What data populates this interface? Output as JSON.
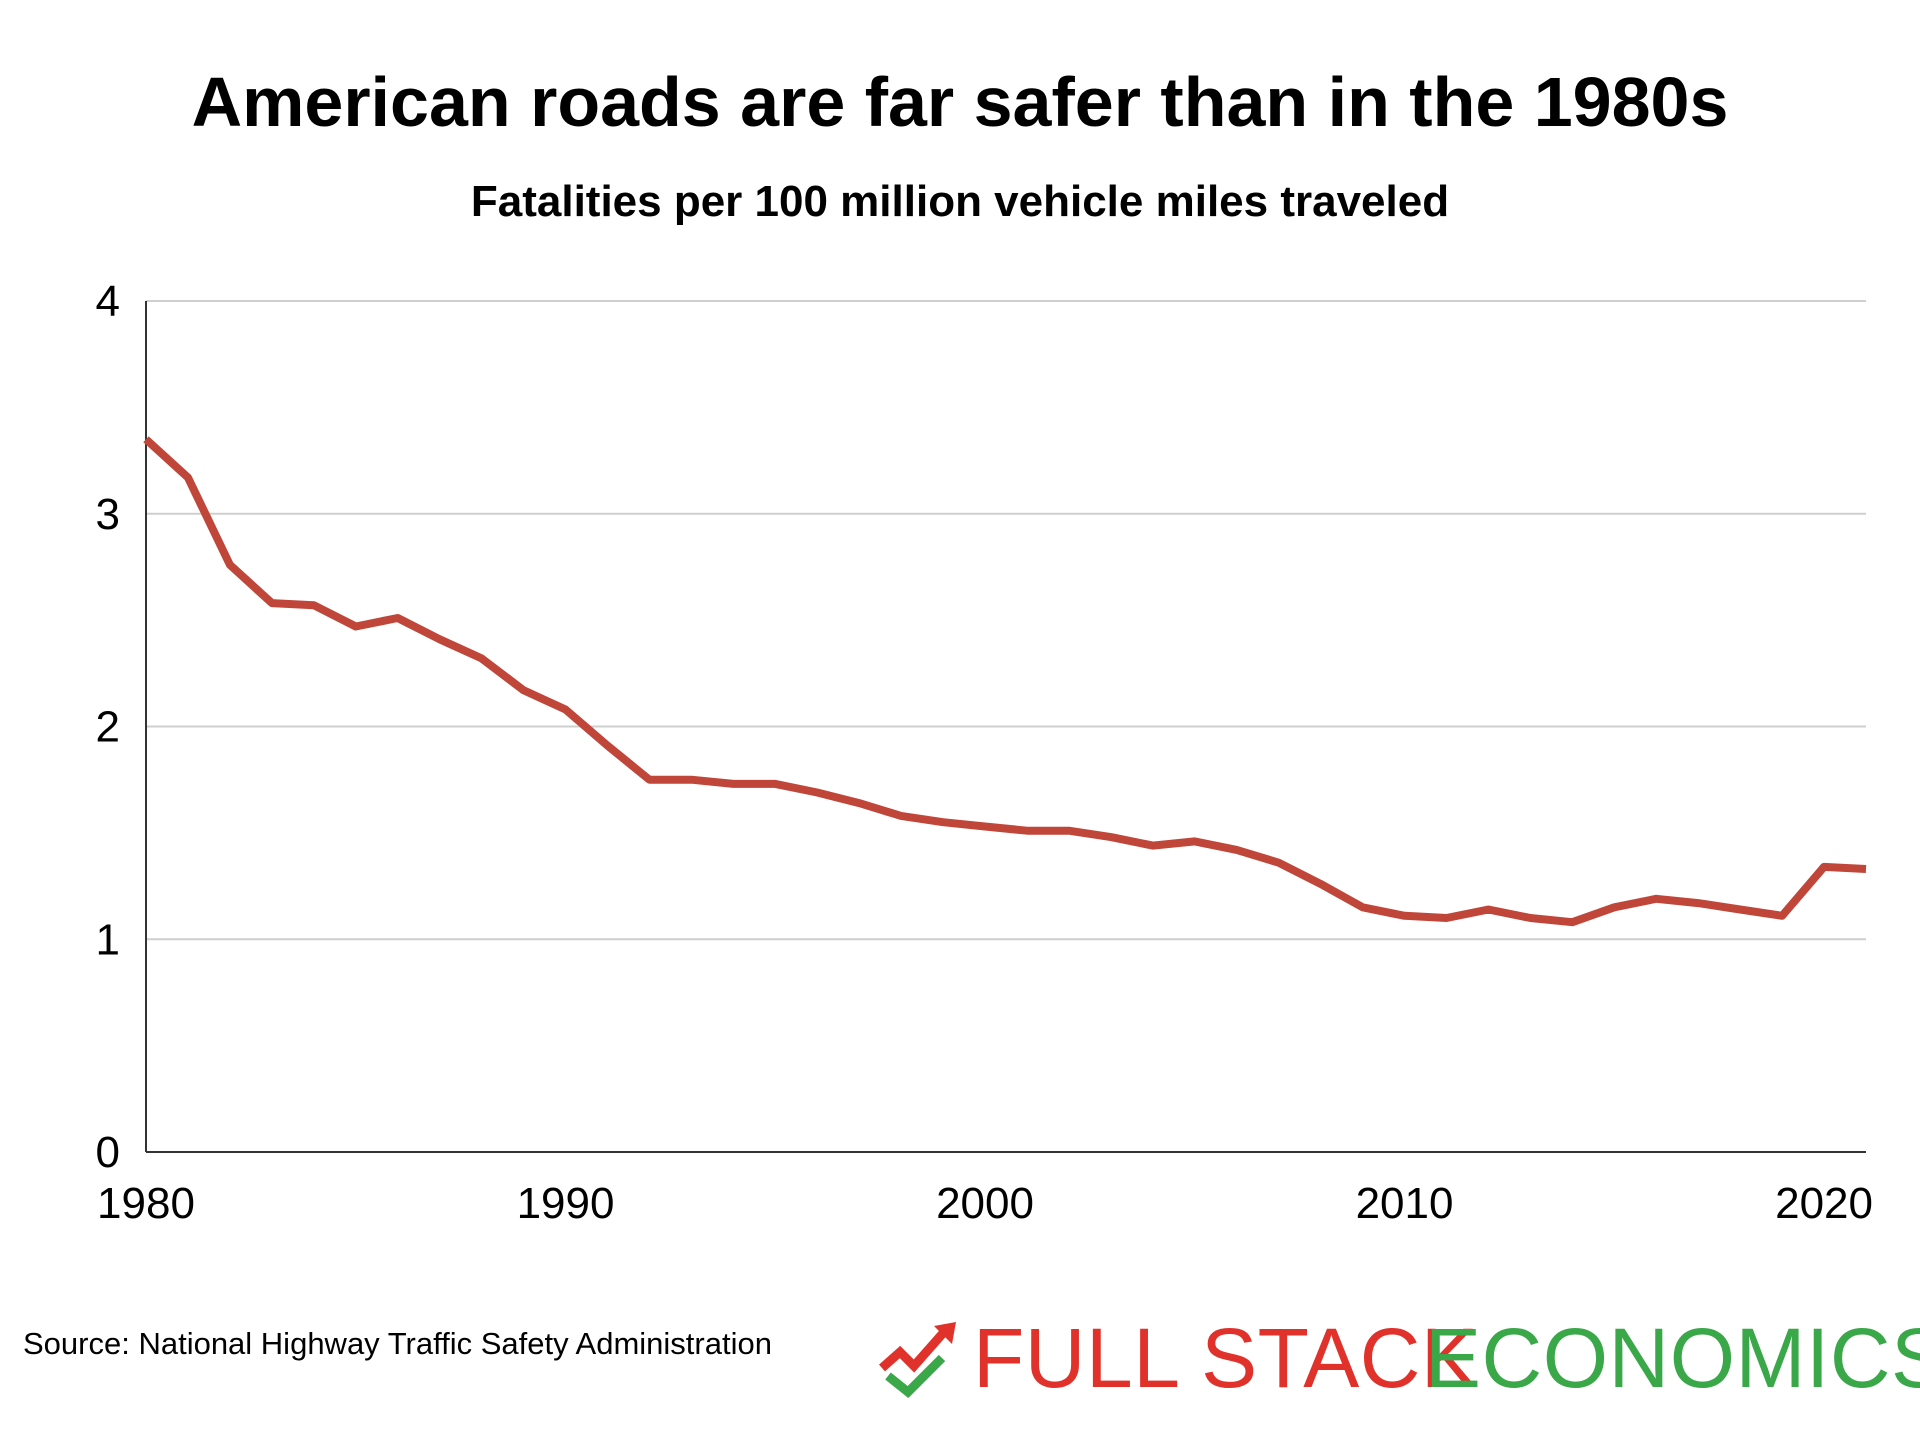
{
  "chart_data": {
    "type": "line",
    "title": "American roads are far safer than in the 1980s",
    "subtitle": "Fatalities per 100 million vehicle miles traveled",
    "xlabel": "",
    "ylabel": "",
    "xlim": [
      1980,
      2021
    ],
    "ylim": [
      0,
      4
    ],
    "x_ticks": [
      1980,
      1990,
      2000,
      2010,
      2020
    ],
    "y_ticks": [
      0,
      1,
      2,
      3,
      4
    ],
    "grid": "horizontal",
    "legend": "none",
    "series": [
      {
        "color": "#c0463a",
        "x": [
          1980,
          1981,
          1982,
          1983,
          1984,
          1985,
          1986,
          1987,
          1988,
          1989,
          1990,
          1991,
          1992,
          1993,
          1994,
          1995,
          1996,
          1997,
          1998,
          1999,
          2000,
          2001,
          2002,
          2003,
          2004,
          2005,
          2006,
          2007,
          2008,
          2009,
          2010,
          2011,
          2012,
          2013,
          2014,
          2015,
          2016,
          2017,
          2018,
          2019,
          2020,
          2021
        ],
        "y": [
          3.35,
          3.17,
          2.76,
          2.58,
          2.57,
          2.47,
          2.51,
          2.41,
          2.32,
          2.17,
          2.08,
          1.91,
          1.75,
          1.75,
          1.73,
          1.73,
          1.69,
          1.64,
          1.58,
          1.55,
          1.53,
          1.51,
          1.51,
          1.48,
          1.44,
          1.46,
          1.42,
          1.36,
          1.26,
          1.15,
          1.11,
          1.1,
          1.14,
          1.1,
          1.08,
          1.15,
          1.19,
          1.17,
          1.14,
          1.11,
          1.34,
          1.33
        ]
      }
    ]
  },
  "footer": {
    "source": "Source: National Highway Traffic Safety Administration",
    "brand_full": "FULL STACK",
    "brand_economics": "ECONOMICS"
  },
  "colors": {
    "line": "#c0463a",
    "grid": "#cfcfcf",
    "brand_red": "#e0312b",
    "brand_green": "#3aa849"
  }
}
